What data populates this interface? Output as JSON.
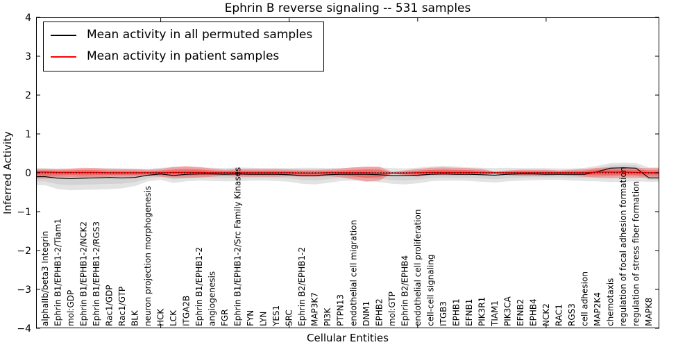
{
  "figure": {
    "title": "Ephrin B reverse signaling -- 531 samples",
    "xlabel": "Cellular Entities",
    "ylabel": "Inferred Activity",
    "legend": [
      {
        "label": "Mean activity in all permuted samples",
        "color": "#000000"
      },
      {
        "label": "Mean activity in patient samples",
        "color": "#ff0000"
      }
    ]
  },
  "chart_data": {
    "type": "line",
    "title": "Ephrin B reverse signaling -- 531 samples",
    "xlabel": "Cellular Entities",
    "ylabel": "Inferred Activity",
    "ylim": [
      -4,
      4
    ],
    "grid": false,
    "legend_position": "upper left",
    "zero_line": true,
    "yticks": [
      {
        "label": "4",
        "value": 4
      },
      {
        "label": "3",
        "value": 3
      },
      {
        "label": "2",
        "value": 2
      },
      {
        "label": "1",
        "value": 1
      },
      {
        "label": "0",
        "value": 0
      },
      {
        "label": "−1",
        "value": -1
      },
      {
        "label": "−2",
        "value": -2
      },
      {
        "label": "−3",
        "value": -3
      },
      {
        "label": "−4",
        "value": -4
      }
    ],
    "xticks_sparse_indices": [
      9,
      19,
      29,
      39
    ],
    "categories": [
      "alphaIIb/beta3 Integrin",
      "Ephrin B1/EPHB1-2/Tiam1",
      "mol:GDP",
      "Ephrin B1/EPHB1-2/NCK2",
      "Ephrin B1/EPHB1-2/RGS3",
      "Rac1/GDP",
      "Rac1/GTP",
      "BLK",
      "neuron projection morphogenesis",
      "HCK",
      "LCK",
      "ITGA2B",
      "Ephrin B1/EPHB1-2",
      "angiogenesis",
      "FGR",
      "Ephrin B1/EPHB1-2/Src Family Kinases",
      "FYN",
      "LYN",
      "YES1",
      "SRC",
      "Ephrin B2/EPHB1-2",
      "MAP3K7",
      "PI3K",
      "PTPN13",
      "endothelial cell migration",
      "DNM1",
      "EPHB2",
      "mol:GTP",
      "Ephrin B2/EPHB4",
      "endothelial cell proliferation",
      "cell-cell signaling",
      "ITGB3",
      "EPHB1",
      "EFNB1",
      "PIK3R1",
      "TIAM1",
      "PIK3CA",
      "EFNB2",
      "EPHB4",
      "NCK2",
      "RAC1",
      "RGS3",
      "cell adhesion",
      "MAP2K4",
      "chemotaxis",
      "regulation of focal adhesion formation",
      "regulation of stress fiber formation",
      "MAPK8"
    ],
    "series": [
      {
        "name": "Mean activity in all permuted samples",
        "color": "#000000",
        "width": 1.1,
        "values": [
          -0.1,
          -0.14,
          -0.15,
          -0.14,
          -0.13,
          -0.12,
          -0.13,
          -0.12,
          -0.06,
          -0.03,
          -0.07,
          -0.04,
          -0.03,
          -0.03,
          -0.04,
          -0.03,
          -0.04,
          -0.04,
          -0.04,
          -0.05,
          -0.07,
          -0.07,
          -0.05,
          -0.04,
          -0.04,
          -0.04,
          -0.05,
          -0.07,
          -0.07,
          -0.06,
          -0.04,
          -0.03,
          -0.04,
          -0.04,
          -0.05,
          -0.06,
          -0.04,
          -0.03,
          -0.03,
          -0.04,
          -0.04,
          -0.04,
          -0.04,
          0.03,
          0.12,
          0.13,
          0.12,
          -0.13
        ]
      },
      {
        "name": "Mean activity in patient samples",
        "color": "#ff0000",
        "width": 1.4,
        "values": [
          0.02,
          0.01,
          0.01,
          0.01,
          0.01,
          0.0,
          0.0,
          0.0,
          0.0,
          0.0,
          0.01,
          0.01,
          0.01,
          0.0,
          0.0,
          0.0,
          0.0,
          0.0,
          0.0,
          0.0,
          -0.01,
          -0.01,
          0.0,
          0.0,
          0.0,
          0.0,
          -0.01,
          -0.01,
          -0.01,
          0.0,
          0.01,
          0.01,
          0.01,
          0.01,
          0.0,
          0.0,
          0.0,
          0.0,
          0.0,
          0.0,
          0.0,
          0.0,
          0.0,
          0.02,
          0.02,
          0.02,
          0.01,
          0.0
        ]
      }
    ],
    "bands": [
      {
        "name": "permuted-range",
        "series": 0,
        "color": "rgba(0,0,0,0.11)",
        "color_inner": "rgba(0,0,0,0.07)",
        "upper": [
          0.12,
          0.1,
          0.1,
          0.11,
          0.12,
          0.12,
          0.11,
          0.1,
          0.1,
          0.13,
          0.15,
          0.16,
          0.14,
          0.13,
          0.12,
          0.14,
          0.13,
          0.12,
          0.12,
          0.12,
          0.13,
          0.13,
          0.12,
          0.12,
          0.14,
          0.15,
          0.14,
          0.12,
          0.11,
          0.13,
          0.16,
          0.18,
          0.16,
          0.14,
          0.13,
          0.12,
          0.13,
          0.12,
          0.12,
          0.12,
          0.11,
          0.11,
          0.13,
          0.18,
          0.25,
          0.26,
          0.25,
          0.14
        ],
        "lower": [
          -0.32,
          -0.42,
          -0.45,
          -0.44,
          -0.43,
          -0.42,
          -0.4,
          -0.34,
          -0.22,
          -0.18,
          -0.26,
          -0.22,
          -0.2,
          -0.21,
          -0.22,
          -0.22,
          -0.2,
          -0.2,
          -0.21,
          -0.23,
          -0.28,
          -0.3,
          -0.26,
          -0.21,
          -0.2,
          -0.21,
          -0.24,
          -0.28,
          -0.3,
          -0.27,
          -0.22,
          -0.2,
          -0.2,
          -0.21,
          -0.23,
          -0.25,
          -0.22,
          -0.2,
          -0.19,
          -0.18,
          -0.18,
          -0.2,
          -0.21,
          -0.22,
          -0.24,
          -0.23,
          -0.22,
          -0.23
        ]
      },
      {
        "name": "patient-range",
        "series": 1,
        "color": "rgba(255,0,0,0.28)",
        "color_inner": "rgba(255,0,0,0.28)",
        "upper": [
          0.1,
          0.1,
          0.11,
          0.13,
          0.12,
          0.1,
          0.1,
          0.1,
          0.08,
          0.1,
          0.15,
          0.17,
          0.15,
          0.11,
          0.08,
          0.1,
          0.1,
          0.1,
          0.1,
          0.09,
          0.08,
          0.08,
          0.09,
          0.11,
          0.14,
          0.16,
          0.16,
          0.02,
          0.06,
          0.1,
          0.13,
          0.14,
          0.13,
          0.12,
          0.1,
          0.03,
          0.06,
          0.08,
          0.08,
          0.08,
          0.06,
          0.08,
          0.1,
          0.13,
          0.14,
          0.13,
          0.13,
          0.12
        ],
        "lower": [
          -0.15,
          -0.13,
          -0.11,
          -0.13,
          -0.12,
          -0.1,
          -0.1,
          -0.1,
          -0.08,
          -0.1,
          -0.13,
          -0.13,
          -0.12,
          -0.1,
          -0.08,
          -0.1,
          -0.1,
          -0.1,
          -0.1,
          -0.09,
          -0.1,
          -0.1,
          -0.09,
          -0.11,
          -0.17,
          -0.23,
          -0.2,
          -0.02,
          -0.06,
          -0.1,
          -0.06,
          -0.06,
          -0.06,
          -0.06,
          -0.05,
          -0.03,
          -0.06,
          -0.08,
          -0.08,
          -0.08,
          -0.06,
          -0.08,
          -0.1,
          -0.13,
          -0.14,
          -0.13,
          -0.13,
          -0.12
        ]
      }
    ]
  }
}
